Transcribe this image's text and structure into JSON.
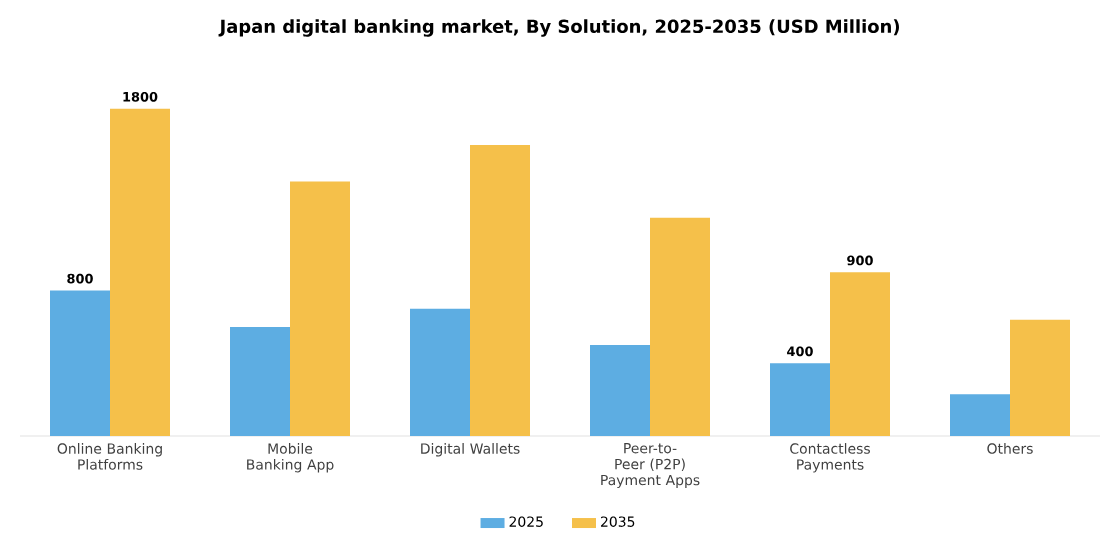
{
  "chart_data": {
    "type": "bar",
    "title": "Japan digital banking market, By Solution, 2025-2035 (USD Million)",
    "categories": [
      "Online Banking Platforms",
      "Mobile Banking App",
      "Digital Wallets",
      "Peer-to-Peer (P2P) Payment Apps",
      "Contactless Payments",
      "Others"
    ],
    "series": [
      {
        "name": "2025",
        "color": "#5dade2",
        "values": [
          800,
          600,
          700,
          500,
          400,
          230
        ],
        "value_labels": [
          "800",
          null,
          null,
          null,
          "400",
          null
        ]
      },
      {
        "name": "2035",
        "color": "#f5c04a",
        "values": [
          1800,
          1400,
          1600,
          1200,
          900,
          640
        ],
        "value_labels": [
          "1800",
          null,
          null,
          null,
          "900",
          null
        ]
      }
    ],
    "legend": "bottom"
  }
}
